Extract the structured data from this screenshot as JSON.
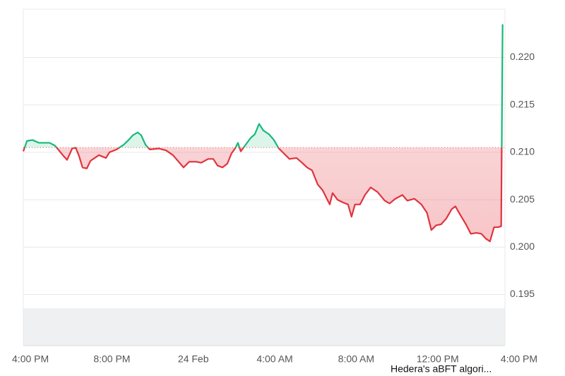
{
  "chart_data": {
    "type": "baseline-line",
    "x": [
      -0.35,
      -0.17,
      0.1,
      0.42,
      0.94,
      1.21,
      1.63,
      1.8,
      2.05,
      2.22,
      2.39,
      2.56,
      2.77,
      2.95,
      3.36,
      3.71,
      3.88,
      4.23,
      4.58,
      4.82,
      5.03,
      5.27,
      5.44,
      5.65,
      5.86,
      6.31,
      6.66,
      7.0,
      7.28,
      7.52,
      7.8,
      8.15,
      8.39,
      8.73,
      8.98,
      9.19,
      9.43,
      9.67,
      9.88,
      10.05,
      10.19,
      10.33,
      10.57,
      10.81,
      11.02,
      11.23,
      11.44,
      11.72,
      11.96,
      12.2,
      12.44,
      12.72,
      13.07,
      13.34,
      13.59,
      13.83,
      14.11,
      14.35,
      14.56,
      14.7,
      14.84,
      15.08,
      15.36,
      15.6,
      15.77,
      15.94,
      16.19,
      16.43,
      16.71,
      17.05,
      17.4,
      17.64,
      17.92,
      18.27,
      18.51,
      18.86,
      19.2,
      19.48,
      19.69,
      19.93,
      20.17,
      20.42,
      20.69,
      20.87,
      21.11,
      21.39,
      21.63,
      21.91,
      22.15,
      22.36,
      22.57,
      22.77,
      22.98,
      23.12,
      23.19
    ],
    "values": [
      0.2101,
      0.2112,
      0.2113,
      0.211,
      0.211,
      0.2107,
      0.2096,
      0.2092,
      0.2104,
      0.2105,
      0.2096,
      0.2084,
      0.2083,
      0.2091,
      0.2097,
      0.2094,
      0.21,
      0.2103,
      0.2108,
      0.2113,
      0.2118,
      0.2121,
      0.2118,
      0.2108,
      0.2103,
      0.2104,
      0.2102,
      0.2097,
      0.209,
      0.2084,
      0.209,
      0.209,
      0.2089,
      0.2093,
      0.2093,
      0.2086,
      0.2084,
      0.2088,
      0.2099,
      0.2104,
      0.211,
      0.2101,
      0.2108,
      0.2115,
      0.2119,
      0.213,
      0.2123,
      0.2119,
      0.2113,
      0.2104,
      0.2099,
      0.2093,
      0.2094,
      0.2089,
      0.2084,
      0.2081,
      0.2066,
      0.206,
      0.2051,
      0.2045,
      0.2057,
      0.205,
      0.2047,
      0.2045,
      0.2032,
      0.2045,
      0.2045,
      0.2055,
      0.2063,
      0.2058,
      0.2049,
      0.2046,
      0.2051,
      0.2055,
      0.2049,
      0.2051,
      0.2045,
      0.2036,
      0.2018,
      0.2023,
      0.2024,
      0.203,
      0.204,
      0.2043,
      0.2034,
      0.2024,
      0.2014,
      0.2015,
      0.2014,
      0.2009,
      0.2006,
      0.2021,
      0.2021,
      0.2022,
      0.2235
    ],
    "baseline": 0.2105,
    "up_color": "#16b979",
    "down_color": "#e0343e",
    "xlim": [
      -0.35,
      24
    ],
    "xticks": [
      {
        "value": 0,
        "label": "4:00 PM"
      },
      {
        "value": 4,
        "label": "8:00 PM"
      },
      {
        "value": 8,
        "label": "24 Feb"
      },
      {
        "value": 12,
        "label": "4:00 AM"
      },
      {
        "value": 16,
        "label": "8:00 AM"
      },
      {
        "value": 20,
        "label": "12:00 PM"
      },
      {
        "value": 24,
        "label": "4:00 PM"
      }
    ],
    "ylim": [
      0.1896,
      0.2251
    ],
    "yticks": [
      {
        "value": 0.195,
        "label": "0.195"
      },
      {
        "value": 0.2,
        "label": "0.200"
      },
      {
        "value": 0.205,
        "label": "0.205"
      },
      {
        "value": 0.21,
        "label": "0.210"
      },
      {
        "value": 0.215,
        "label": "0.215"
      },
      {
        "value": 0.22,
        "label": "0.220"
      }
    ],
    "grid": true,
    "annotation": "Hedera's aBFT algori..."
  }
}
